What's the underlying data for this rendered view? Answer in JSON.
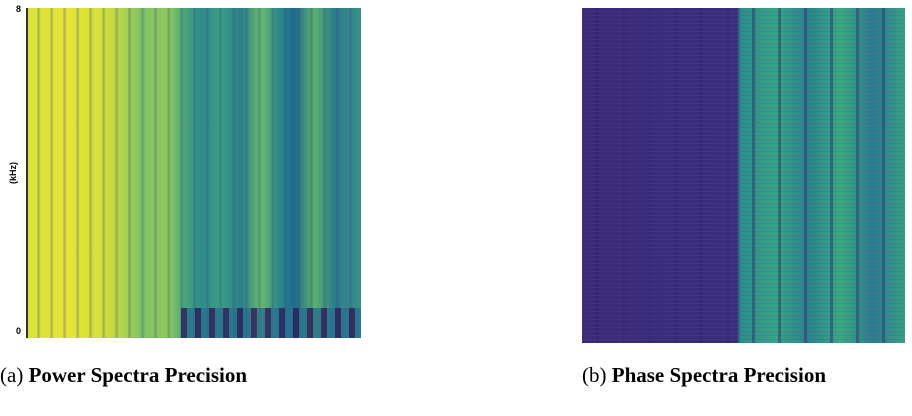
{
  "figures": [
    {
      "label": "(a)",
      "caption": "Power Spectra Precision",
      "axis": {
        "top": "8",
        "bottom": "0",
        "unit": "(kHz)"
      }
    },
    {
      "label": "(b)",
      "caption": "Phase Spectra Precision"
    }
  ]
}
